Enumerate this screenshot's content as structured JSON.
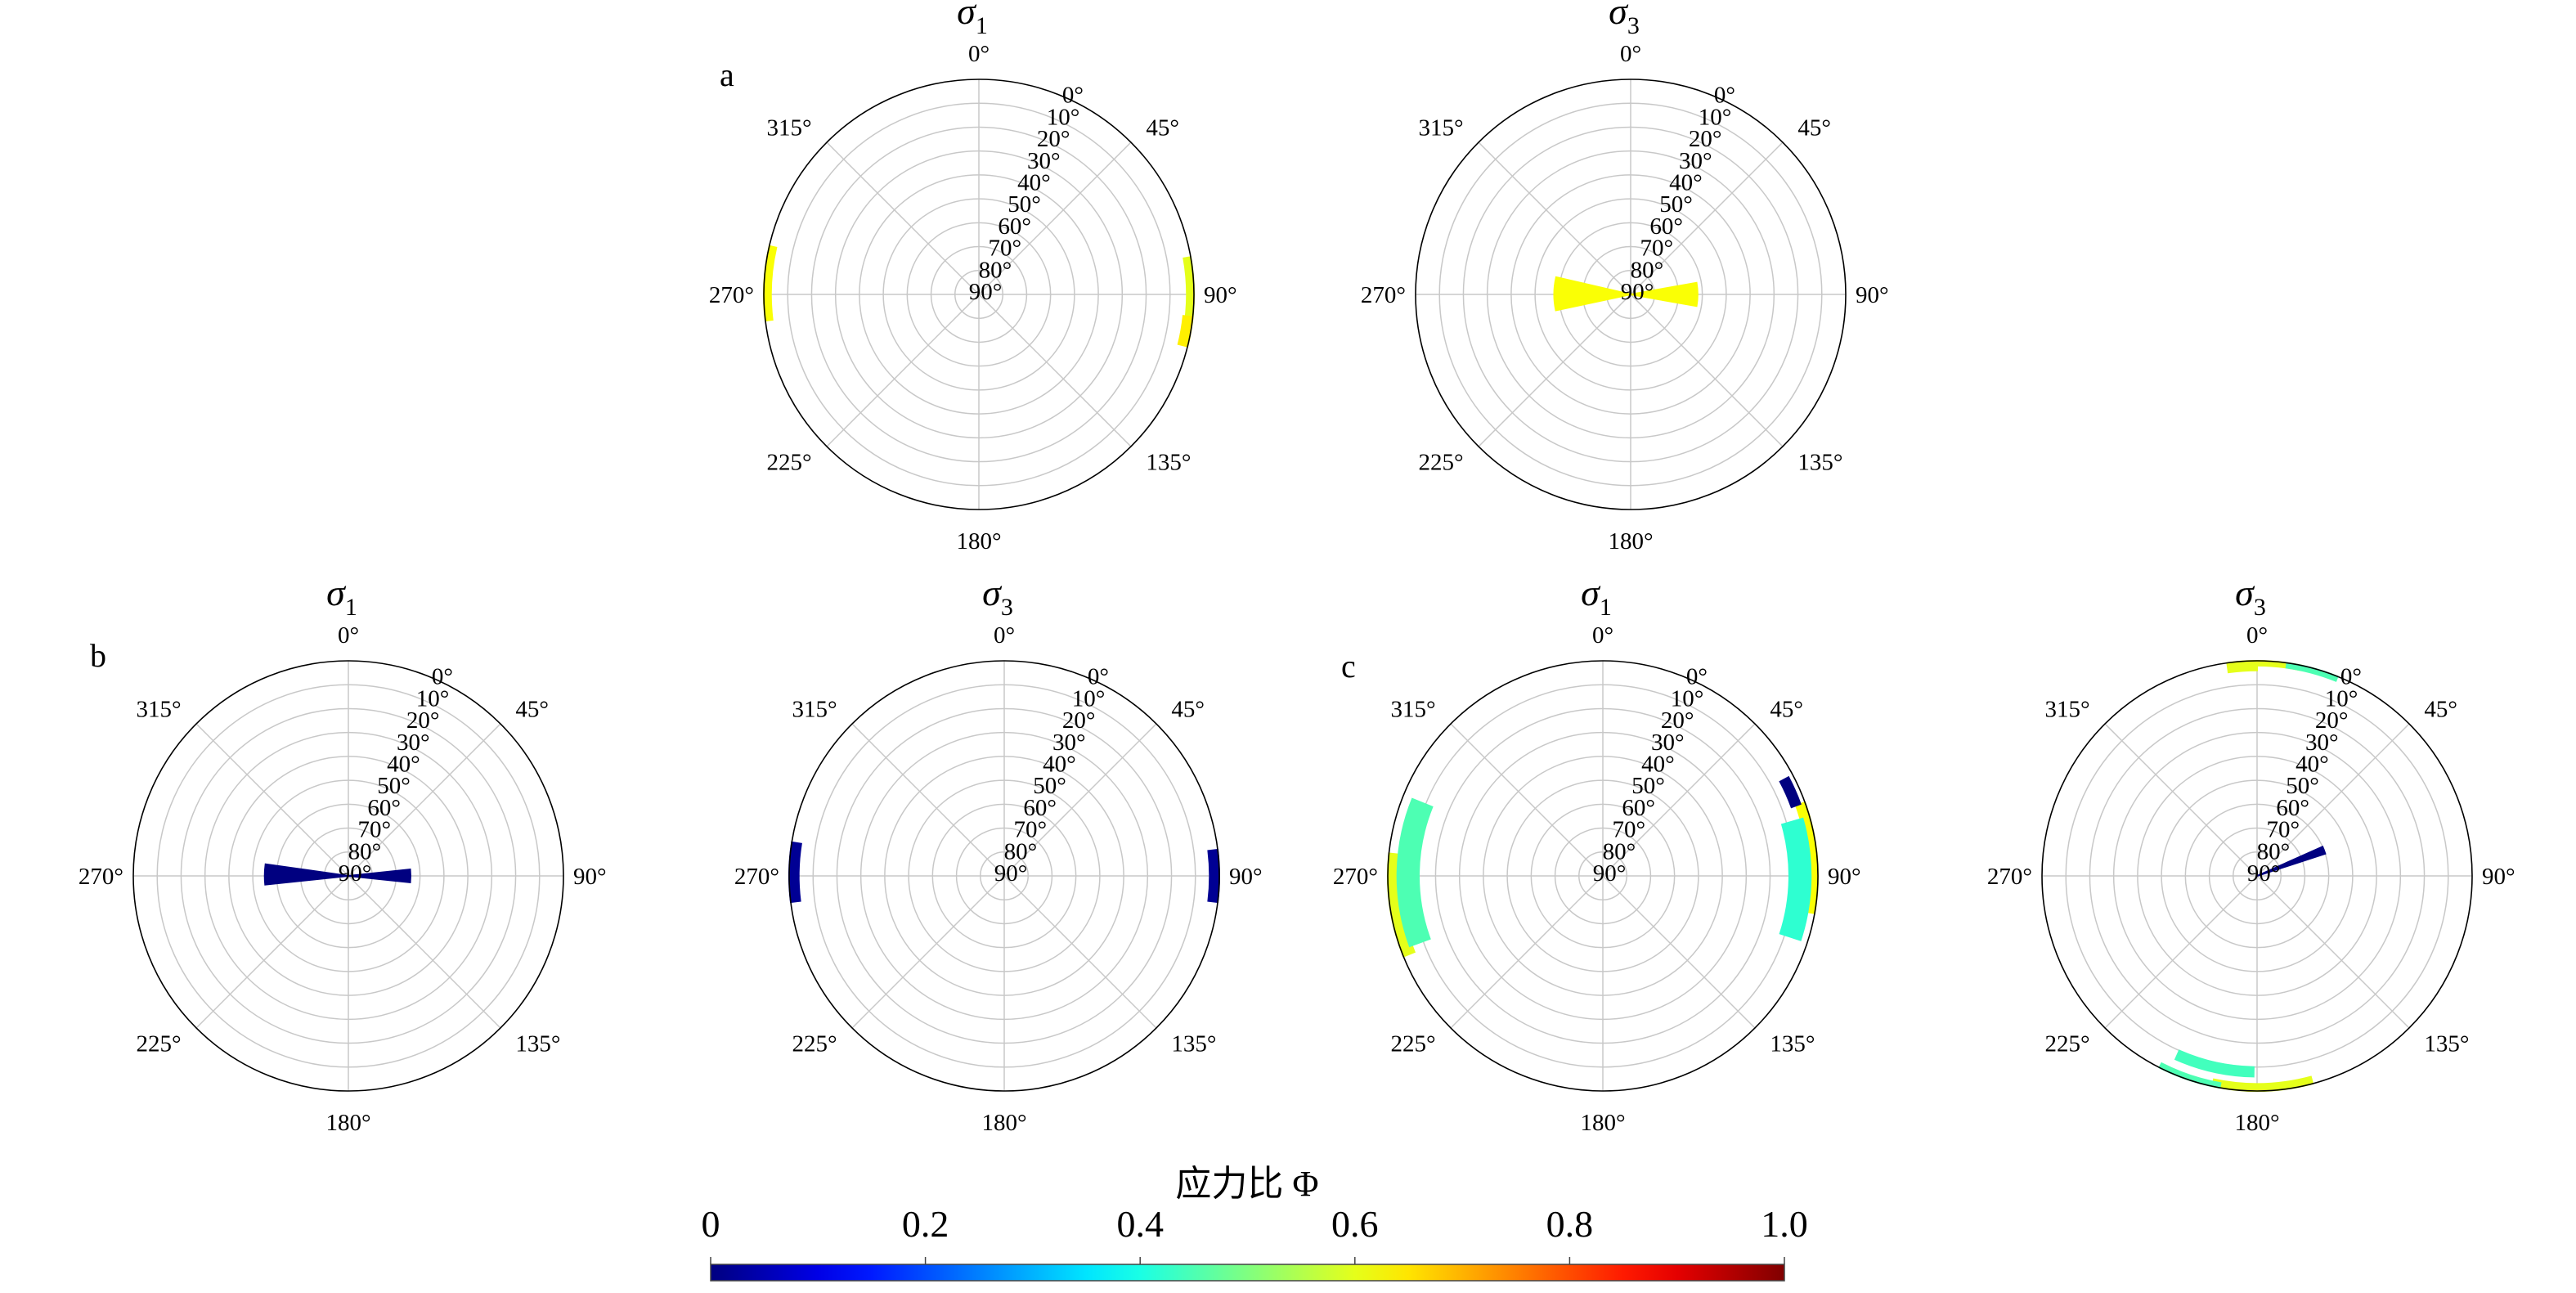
{
  "chart_data": {
    "type": "polar-rose",
    "radial_axis": {
      "labels": [
        "0°",
        "10°",
        "20°",
        "30°",
        "40°",
        "50°",
        "60°",
        "70°",
        "80°",
        "90°"
      ],
      "range": [
        0,
        90
      ],
      "meaning": "plunge"
    },
    "azimuth_labels": [
      "0°",
      "45°",
      "90°",
      "135°",
      "180°",
      "225°",
      "270°",
      "315°"
    ],
    "colorbar": {
      "title": "应力比 Φ",
      "colormap": "jet",
      "range": [
        0,
        1.0
      ],
      "ticks": [
        "0",
        "0.2",
        "0.4",
        "0.6",
        "0.8",
        "1.0"
      ]
    },
    "panels": [
      {
        "letter": "a",
        "title": "σ",
        "subscript": "1",
        "petals": [
          {
            "az": [
              263,
              283
            ],
            "plunge": [
              0,
              3
            ],
            "phi": 0.62
          },
          {
            "az": [
              80,
              98
            ],
            "plunge": [
              0,
              3
            ],
            "phi": 0.6
          },
          {
            "az": [
              96,
              104
            ],
            "plunge": [
              0,
              4
            ],
            "phi": 0.64
          }
        ]
      },
      {
        "letter": "",
        "title": "σ",
        "subscript": "3",
        "petals": [
          {
            "az": [
              258,
              283
            ],
            "plunge": [
              58,
              90
            ],
            "phi": 0.62
          },
          {
            "az": [
              80,
              100
            ],
            "plunge": [
              62,
              90
            ],
            "phi": 0.62
          }
        ]
      },
      {
        "letter": "b",
        "title": "σ",
        "subscript": "1",
        "petals": [
          {
            "az": [
              264,
              278
            ],
            "plunge": [
              55,
              90
            ],
            "phi": 0.0
          },
          {
            "az": [
              84,
              96
            ],
            "plunge": [
              64,
              90
            ],
            "phi": 0.0
          }
        ]
      },
      {
        "letter": "",
        "title": "σ",
        "subscript": "3",
        "petals": [
          {
            "az": [
              263,
              279
            ],
            "plunge": [
              0,
              4
            ],
            "phi": 0.02
          },
          {
            "az": [
              83,
              97
            ],
            "plunge": [
              0,
              4
            ],
            "phi": 0.02
          }
        ]
      },
      {
        "letter": "c",
        "title": "σ",
        "subscript": "1",
        "petals": [
          {
            "az": [
              248,
              276
            ],
            "plunge": [
              0,
              5
            ],
            "phi": 0.6
          },
          {
            "az": [
              250,
              292
            ],
            "plunge": [
              4,
              13
            ],
            "phi": 0.45
          },
          {
            "az": [
              70,
              100
            ],
            "plunge": [
              0,
              4
            ],
            "phi": 0.62
          },
          {
            "az": [
              74,
              108
            ],
            "plunge": [
              3,
              12
            ],
            "phi": 0.42
          },
          {
            "az": [
              62,
              70
            ],
            "plunge": [
              2,
              6
            ],
            "phi": 0.0
          }
        ]
      },
      {
        "letter": "",
        "title": "σ",
        "subscript": "3",
        "petals": [
          {
            "az": [
              352,
              360
            ],
            "plunge": [
              0,
              4
            ],
            "phi": 0.6
          },
          {
            "az": [
              0,
              12
            ],
            "plunge": [
              0,
              2
            ],
            "phi": 0.6
          },
          {
            "az": [
              8,
              22
            ],
            "plunge": [
              0,
              2
            ],
            "phi": 0.45
          },
          {
            "az": [
              165,
              192
            ],
            "plunge": [
              0,
              3
            ],
            "phi": 0.6
          },
          {
            "az": [
              190,
              207
            ],
            "plunge": [
              0,
              2
            ],
            "phi": 0.45
          },
          {
            "az": [
              181,
              204
            ],
            "plunge": [
              6,
              10
            ],
            "phi": 0.44
          },
          {
            "az": [
              66,
              72
            ],
            "plunge": [
              60,
              90
            ],
            "phi": 0.0
          }
        ]
      }
    ]
  }
}
